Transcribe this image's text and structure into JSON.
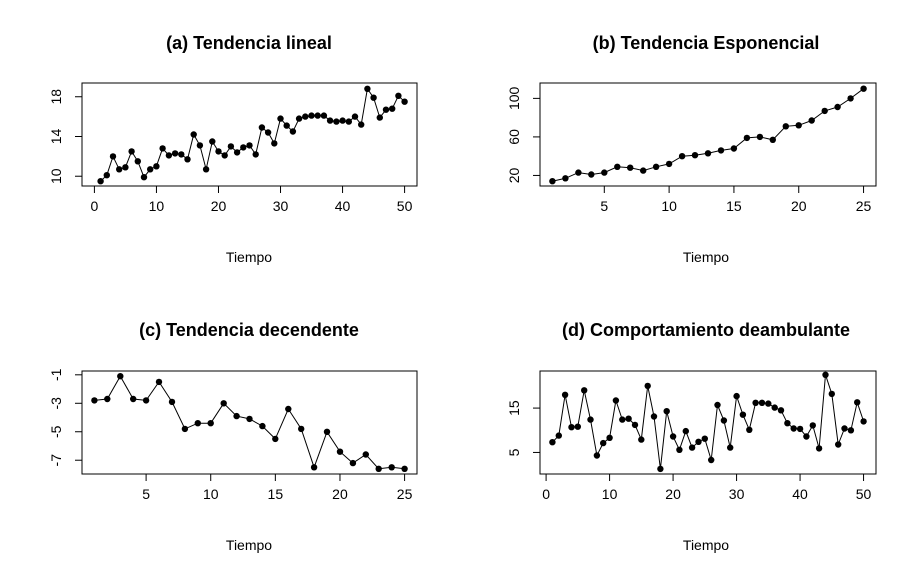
{
  "chart_data": [
    {
      "type": "line",
      "title": "(a) Tendencia lineal",
      "xlabel": "Tiempo",
      "ylabel": "",
      "xlim": [
        0,
        50
      ],
      "ylim": [
        9.4,
        19
      ],
      "xticks": [
        "0",
        "10",
        "20",
        "30",
        "40",
        "50"
      ],
      "yticks": [
        "10",
        "14",
        "18"
      ],
      "x": [
        1,
        2,
        3,
        4,
        5,
        6,
        7,
        8,
        9,
        10,
        11,
        12,
        13,
        14,
        15,
        16,
        17,
        18,
        19,
        20,
        21,
        22,
        23,
        24,
        25,
        26,
        27,
        28,
        29,
        30,
        31,
        32,
        33,
        34,
        35,
        36,
        37,
        38,
        39,
        40,
        41,
        42,
        43,
        44,
        45,
        46,
        47,
        48,
        49,
        50
      ],
      "values": [
        9.5,
        10.1,
        12.0,
        10.7,
        10.9,
        12.5,
        11.5,
        9.9,
        10.7,
        11.0,
        12.8,
        12.1,
        12.3,
        12.2,
        11.7,
        14.2,
        13.1,
        10.7,
        13.5,
        12.5,
        12.1,
        13.0,
        12.4,
        12.9,
        13.1,
        12.2,
        14.9,
        14.4,
        13.3,
        15.8,
        15.1,
        14.5,
        15.8,
        16.0,
        16.1,
        16.1,
        16.1,
        15.6,
        15.5,
        15.6,
        15.5,
        16.0,
        15.2,
        18.8,
        17.9,
        15.9,
        16.7,
        16.8,
        18.1,
        17.5
      ]
    },
    {
      "type": "line",
      "title": "(b) Tendencia Esponencial",
      "xlabel": "Tiempo",
      "ylabel": "",
      "xlim": [
        1,
        25
      ],
      "ylim": [
        13,
        112
      ],
      "xticks": [
        "5",
        "10",
        "15",
        "20",
        "25"
      ],
      "yticks": [
        "20",
        "60",
        "100"
      ],
      "x": [
        1,
        2,
        3,
        4,
        5,
        6,
        7,
        8,
        9,
        10,
        11,
        12,
        13,
        14,
        15,
        16,
        17,
        18,
        19,
        20,
        21,
        22,
        23,
        24,
        25
      ],
      "values": [
        14,
        17,
        23,
        21,
        23,
        29,
        28,
        25,
        29,
        32,
        40,
        41,
        43,
        46,
        48,
        59,
        60,
        57,
        71,
        72,
        77,
        87,
        91,
        100,
        110
      ]
    },
    {
      "type": "line",
      "title": "(c) Tendencia decendente",
      "xlabel": "Tiempo",
      "ylabel": "",
      "xlim": [
        1,
        25
      ],
      "ylim": [
        -7.7,
        -1
      ],
      "xticks": [
        "5",
        "10",
        "15",
        "20",
        "25"
      ],
      "yticks": [
        "-1",
        "-3",
        "-5",
        "-7"
      ],
      "x": [
        1,
        2,
        3,
        4,
        5,
        6,
        7,
        8,
        9,
        10,
        11,
        12,
        13,
        14,
        15,
        16,
        17,
        18,
        19,
        20,
        21,
        22,
        23,
        24,
        25
      ],
      "values": [
        -2.8,
        -2.7,
        -1.1,
        -2.7,
        -2.8,
        -1.5,
        -2.9,
        -4.8,
        -4.4,
        -4.4,
        -3.0,
        -3.9,
        -4.1,
        -4.6,
        -5.5,
        -3.4,
        -4.8,
        -7.5,
        -5.0,
        -6.4,
        -7.2,
        -6.6,
        -7.6,
        -7.5,
        -7.6
      ]
    },
    {
      "type": "line",
      "title": "(d) Comportamiento deambulante",
      "xlabel": "Tiempo",
      "ylabel": "",
      "xlim": [
        1,
        50
      ],
      "ylim": [
        1,
        22.5
      ],
      "xticks": [
        "0",
        "10",
        "20",
        "30",
        "40",
        "50"
      ],
      "yticks": [
        "5",
        "15"
      ],
      "x": [
        1,
        2,
        3,
        4,
        5,
        6,
        7,
        8,
        9,
        10,
        11,
        12,
        13,
        14,
        15,
        16,
        17,
        18,
        19,
        20,
        21,
        22,
        23,
        24,
        25,
        26,
        27,
        28,
        29,
        30,
        31,
        32,
        33,
        34,
        35,
        36,
        37,
        38,
        39,
        40,
        41,
        42,
        43,
        44,
        45,
        46,
        47,
        48,
        49,
        50
      ],
      "values": [
        7.3,
        8.8,
        18.0,
        10.7,
        10.8,
        19.0,
        12.4,
        4.3,
        7.1,
        8.3,
        16.7,
        12.4,
        12.6,
        11.2,
        7.9,
        20.0,
        13.1,
        1.3,
        14.3,
        8.6,
        5.6,
        9.8,
        6.1,
        7.4,
        8.1,
        3.3,
        15.7,
        12.2,
        6.1,
        17.7,
        13.5,
        10.1,
        16.2,
        16.2,
        16.0,
        15.1,
        14.5,
        11.6,
        10.4,
        10.3,
        8.6,
        11.1,
        5.9,
        22.5,
        18.2,
        6.8,
        10.4,
        10.0,
        16.3,
        12.0
      ]
    }
  ]
}
